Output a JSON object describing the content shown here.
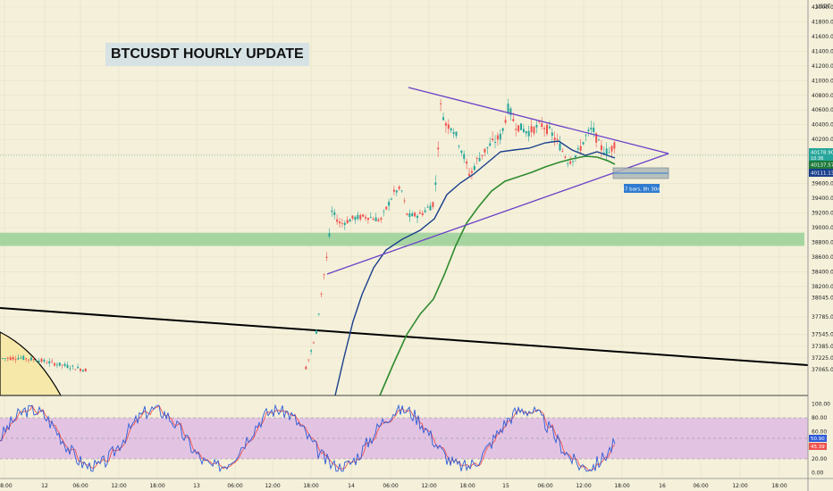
{
  "title": "BTCUSDT HOURLY UPDATE",
  "currency_label": "USDT",
  "countdown_label": "47 bars, 8h 30m",
  "chart_data": {
    "type": "candlestick",
    "title": "BTCUSDT HOURLY UPDATE",
    "price_axis": {
      "ylim": [
        37050,
        42150
      ],
      "ticks": [
        42000,
        41800,
        41600,
        41400,
        41200,
        41000,
        40800,
        40600,
        40400,
        40200,
        40000,
        39800,
        39600,
        39400,
        39200,
        39000,
        38800,
        38600,
        38400,
        38200,
        38045,
        37785,
        37545,
        37385,
        37225,
        37065
      ]
    },
    "time_axis": {
      "labels": [
        "18:00",
        "12",
        "06:00",
        "12:00",
        "18:00",
        "13",
        "06:00",
        "12:00",
        "18:00",
        "14",
        "06:00",
        "12:00",
        "18:00",
        "15",
        "06:00",
        "12:00",
        "18:00",
        "16",
        "06:00",
        "12:00",
        "18:00"
      ]
    },
    "price_labels": [
      {
        "value": "40178.90",
        "sub": "10:36",
        "color": "#26a69a"
      },
      {
        "value": "40137.57",
        "color": "#1f7a3a"
      },
      {
        "value": "40111.13",
        "color": "#1a3f8c"
      }
    ],
    "support_zone": [
      38750,
      38930
    ],
    "stoch_axis": {
      "ticks": [
        "100.00",
        "80.00",
        "60.00",
        "50.00",
        "20.00",
        "0.00"
      ]
    },
    "stoch_labels": [
      {
        "value": "50.90",
        "color": "#2f5bd8"
      },
      {
        "value": "45.39",
        "color": "#ef5350"
      }
    ],
    "colors": {
      "background": "#f4f0da",
      "up": "#26a69a",
      "down": "#ef5350",
      "ma_fast": "#1a3f8c",
      "ma_slow": "#2e8b2e",
      "triangle": "#6a3fc8",
      "trendline": "#000000",
      "zone": "#9fd29a",
      "stoch_band": "#e2c4e2",
      "stoch_k": "#2f5bd8",
      "stoch_d": "#ef5350"
    }
  }
}
